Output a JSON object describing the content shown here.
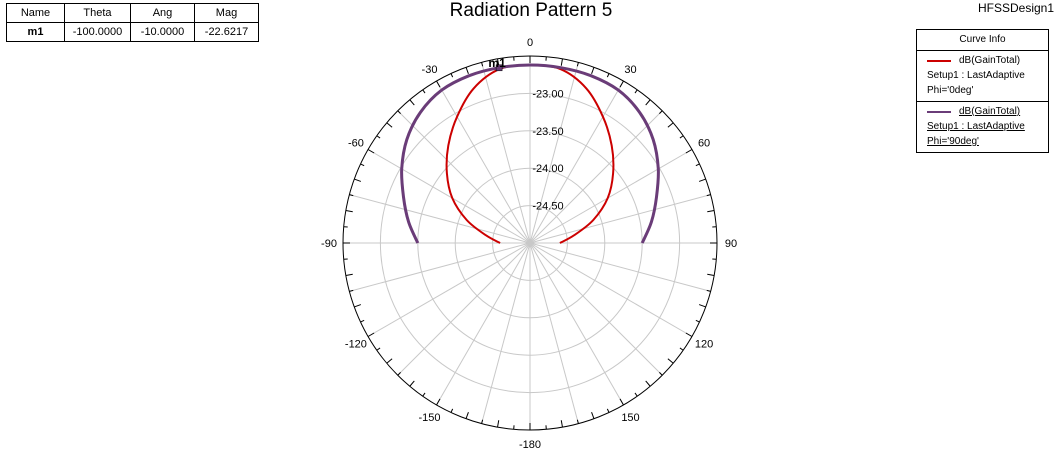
{
  "window": {
    "design_name": "HFSSDesign1"
  },
  "marker_table": {
    "headers": [
      "Name",
      "Theta",
      "Ang",
      "Mag"
    ],
    "rows": [
      {
        "name": "m1",
        "theta": "-100.0000",
        "ang": "-10.0000",
        "mag": "-22.6217"
      }
    ]
  },
  "legend": {
    "header": "Curve Info",
    "entries": [
      {
        "line1": "dB(GainTotal)",
        "line2": "Setup1 : LastAdaptive",
        "line3": "Phi='0deg'",
        "color": "#cc0000"
      },
      {
        "line1": "dB(GainTotal)",
        "line2": "Setup1 : LastAdaptive",
        "line3": "Phi='90deg'",
        "color": "#6a3c78"
      }
    ]
  },
  "chart_data": {
    "type": "line",
    "subtype": "polar",
    "title": "Radiation Pattern 5",
    "angle_ticks": [
      {
        "deg": 0,
        "label": "0"
      },
      {
        "deg": 30,
        "label": "30"
      },
      {
        "deg": 60,
        "label": "60"
      },
      {
        "deg": 90,
        "label": "90"
      },
      {
        "deg": 120,
        "label": "120"
      },
      {
        "deg": 150,
        "label": "150"
      },
      {
        "deg": -180,
        "label": "-180"
      },
      {
        "deg": -150,
        "label": "-150"
      },
      {
        "deg": -120,
        "label": "-120"
      },
      {
        "deg": -90,
        "label": "-90"
      },
      {
        "deg": -60,
        "label": "-60"
      },
      {
        "deg": -30,
        "label": "-30"
      }
    ],
    "radial_ticks": [
      {
        "value": -23.0,
        "label": "-23.00"
      },
      {
        "value": -23.5,
        "label": "-23.50"
      },
      {
        "value": -24.0,
        "label": "-24.00"
      },
      {
        "value": -24.5,
        "label": "-24.50"
      }
    ],
    "radial_range": [
      -25.0,
      -22.5
    ],
    "grid": true,
    "legend_position": "top-right",
    "marker": {
      "name": "m1",
      "angle": -10,
      "value": -22.6217
    },
    "series": [
      {
        "name": "Phi='0deg'",
        "color": "#cc0000",
        "x": [
          -90,
          -80,
          -70,
          -60,
          -50,
          -40,
          -30,
          -20,
          -10,
          0,
          10,
          20,
          30,
          40,
          50,
          60,
          70,
          80,
          90
        ],
        "y": [
          -24.6,
          -24.4,
          -24.1,
          -23.8,
          -23.55,
          -23.3,
          -23.05,
          -22.8,
          -22.64,
          -22.62,
          -22.64,
          -22.8,
          -23.05,
          -23.3,
          -23.55,
          -23.8,
          -24.1,
          -24.4,
          -24.6
        ]
      },
      {
        "name": "Phi='90deg'",
        "color": "#6a3c78",
        "x": [
          -90,
          -80,
          -70,
          -60,
          -50,
          -40,
          -30,
          -20,
          -10,
          0,
          10,
          20,
          30,
          40,
          50,
          60,
          70,
          80,
          90
        ],
        "y": [
          -23.5,
          -23.35,
          -23.2,
          -23.02,
          -22.85,
          -22.72,
          -22.64,
          -22.62,
          -22.62,
          -22.62,
          -22.62,
          -22.62,
          -22.64,
          -22.72,
          -22.85,
          -23.02,
          -23.2,
          -23.35,
          -23.5
        ]
      }
    ]
  }
}
